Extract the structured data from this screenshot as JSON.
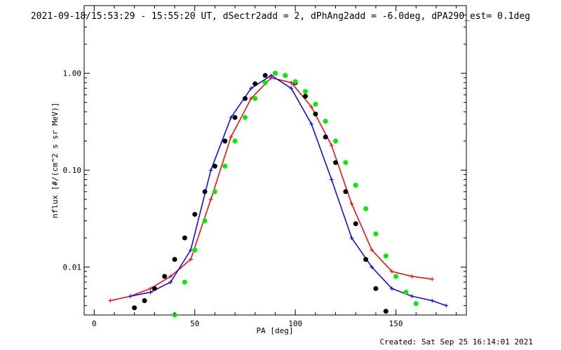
{
  "chart_data": {
    "type": "line",
    "title": "2021-09-18/15:53:29 - 15:55:20 UT, dSectr2add = 2, dPhAng2add = -6.0deg, dPA290_est=  0.1deg",
    "xlabel": "PA [deg]",
    "ylabel": "nflux [#/(cm^2 s sr MeV)]",
    "xlim": [
      -5,
      185
    ],
    "ylim": [
      0.0032,
      5
    ],
    "yscale": "log",
    "x_ticks": [
      0,
      50,
      100,
      150
    ],
    "y_ticks": [
      0.01,
      0.1,
      1.0
    ],
    "y_tick_labels": [
      "0.01",
      "0.10",
      "1.00"
    ],
    "series": [
      {
        "color": "#ff0000",
        "style": "line+plus",
        "x": [
          8,
          18,
          28,
          38,
          48,
          58,
          68,
          78,
          88,
          98,
          108,
          118,
          128,
          138,
          148,
          158,
          168
        ],
        "y": [
          0.0045,
          0.005,
          0.006,
          0.008,
          0.012,
          0.05,
          0.22,
          0.55,
          0.9,
          0.8,
          0.45,
          0.18,
          0.045,
          0.015,
          0.009,
          0.008,
          0.0075
        ]
      },
      {
        "color": "#0000ff",
        "style": "line+plus",
        "x": [
          18,
          28,
          38,
          48,
          58,
          68,
          78,
          88,
          98,
          108,
          118,
          128,
          138,
          148,
          158,
          168,
          175
        ],
        "y": [
          0.005,
          0.0055,
          0.007,
          0.015,
          0.1,
          0.35,
          0.7,
          0.95,
          0.7,
          0.3,
          0.08,
          0.02,
          0.01,
          0.006,
          0.005,
          0.0045,
          0.004
        ]
      },
      {
        "color": "#000000",
        "style": "dots",
        "x": [
          20,
          25,
          30,
          35,
          40,
          45,
          50,
          55,
          60,
          65,
          70,
          75,
          80,
          85,
          90,
          95,
          100,
          105,
          110,
          115,
          120,
          125,
          130,
          135,
          140,
          145
        ],
        "y": [
          0.0038,
          0.0045,
          0.006,
          0.008,
          0.012,
          0.02,
          0.035,
          0.06,
          0.11,
          0.2,
          0.35,
          0.55,
          0.78,
          0.95,
          1.0,
          0.95,
          0.8,
          0.58,
          0.38,
          0.22,
          0.12,
          0.06,
          0.028,
          0.012,
          0.006,
          0.0035
        ]
      },
      {
        "color": "#00ee00",
        "style": "dots",
        "x": [
          40,
          45,
          50,
          55,
          60,
          65,
          70,
          75,
          80,
          85,
          90,
          95,
          100,
          105,
          110,
          115,
          120,
          125,
          130,
          135,
          140,
          145,
          150,
          155,
          160
        ],
        "y": [
          0.0032,
          0.007,
          0.015,
          0.03,
          0.06,
          0.11,
          0.2,
          0.35,
          0.55,
          0.8,
          1.0,
          0.95,
          0.82,
          0.65,
          0.48,
          0.32,
          0.2,
          0.12,
          0.07,
          0.04,
          0.022,
          0.013,
          0.008,
          0.0055,
          0.0042
        ]
      }
    ]
  },
  "footer": "Created: Sat Sep 25 16:14:01 2021"
}
